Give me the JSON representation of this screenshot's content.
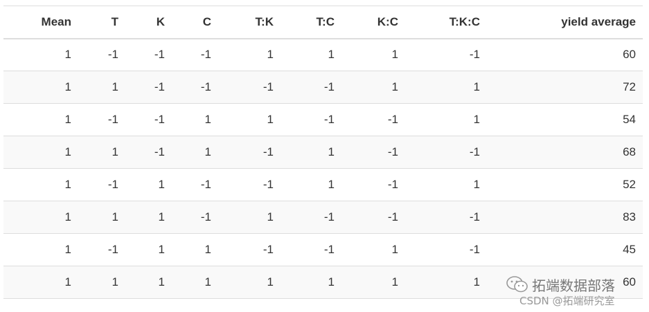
{
  "table": {
    "header": [
      "Mean",
      "T",
      "K",
      "C",
      "T:K",
      "T:C",
      "K:C",
      "T:K:C",
      "yield average"
    ],
    "rows": [
      [
        1,
        -1,
        -1,
        -1,
        1,
        1,
        1,
        -1,
        60
      ],
      [
        1,
        1,
        -1,
        -1,
        -1,
        -1,
        1,
        1,
        72
      ],
      [
        1,
        -1,
        -1,
        1,
        1,
        -1,
        -1,
        1,
        54
      ],
      [
        1,
        1,
        -1,
        1,
        -1,
        1,
        -1,
        -1,
        68
      ],
      [
        1,
        -1,
        1,
        -1,
        -1,
        1,
        -1,
        1,
        52
      ],
      [
        1,
        1,
        1,
        -1,
        1,
        -1,
        -1,
        -1,
        83
      ],
      [
        1,
        -1,
        1,
        1,
        -1,
        -1,
        1,
        -1,
        45
      ],
      [
        1,
        1,
        1,
        1,
        1,
        1,
        1,
        1,
        60
      ]
    ]
  },
  "watermark": {
    "line1": "拓端数据部落",
    "line2": "CSDN @拓端研究室"
  }
}
